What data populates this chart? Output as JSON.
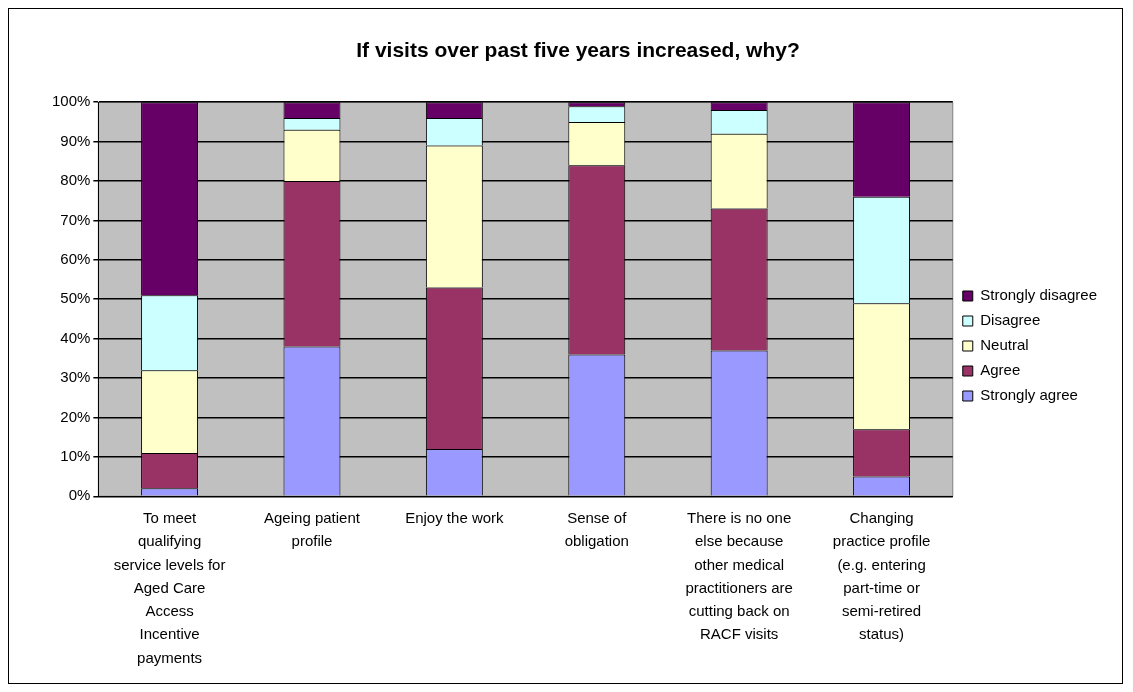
{
  "chart_data": {
    "type": "bar",
    "title": "If visits over past five years increased, why?",
    "categories": [
      "To meet qualifying service levels for Aged Care Access Incentive payments",
      "Ageing patient profile",
      "Enjoy the work",
      "Sense of obligation",
      "There is no one else because other medical practitioners are cutting back on RACF visits",
      "Changing practice profile (e.g. entering part-time or semi-retired status)"
    ],
    "series": [
      {
        "name": "Strongly agree",
        "color": "#9999ff",
        "values": [
          2,
          38,
          12,
          36,
          37,
          5
        ]
      },
      {
        "name": "Agree",
        "color": "#993366",
        "values": [
          9,
          42,
          41,
          48,
          36,
          12
        ]
      },
      {
        "name": "Neutral",
        "color": "#ffffcc",
        "values": [
          21,
          13,
          36,
          11,
          19,
          32
        ]
      },
      {
        "name": "Disagree",
        "color": "#ccffff",
        "values": [
          19,
          3,
          7,
          4,
          6,
          27
        ]
      },
      {
        "name": "Strongly disagree",
        "color": "#660066",
        "values": [
          49,
          4,
          4,
          1,
          2,
          24
        ]
      }
    ],
    "stacked": true,
    "ylim": [
      0,
      100
    ],
    "yticks": [
      {
        "value": 0,
        "label": "0%"
      },
      {
        "value": 10,
        "label": "10%"
      },
      {
        "value": 20,
        "label": "20%"
      },
      {
        "value": 30,
        "label": "30%"
      },
      {
        "value": 40,
        "label": "40%"
      },
      {
        "value": 50,
        "label": "50%"
      },
      {
        "value": 60,
        "label": "60%"
      },
      {
        "value": 70,
        "label": "70%"
      },
      {
        "value": 80,
        "label": "80%"
      },
      {
        "value": 90,
        "label": "90%"
      },
      {
        "value": 100,
        "label": "100%"
      }
    ],
    "grid": "y",
    "legend": "right"
  }
}
